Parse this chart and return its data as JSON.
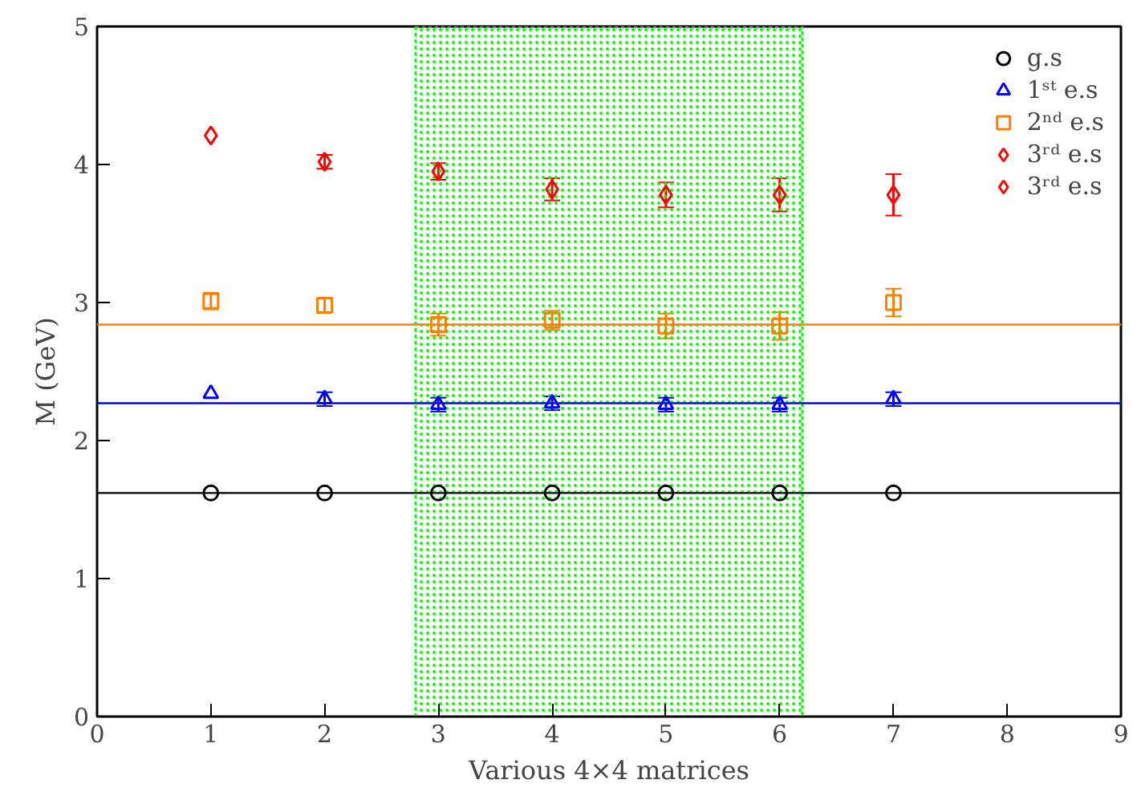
{
  "chart_data": {
    "type": "scatter",
    "xlabel": "Various 4×4 matrices",
    "ylabel": "M (GeV)",
    "x": [
      1,
      2,
      3,
      4,
      5,
      6,
      7
    ],
    "xlim": [
      0,
      9
    ],
    "ylim": [
      0,
      5
    ],
    "xticks": [
      0,
      1,
      2,
      3,
      4,
      5,
      6,
      7,
      8,
      9
    ],
    "yticks": [
      0,
      1,
      2,
      3,
      4,
      5
    ],
    "grid": false,
    "legend": "top right",
    "series": [
      {
        "name": "g.s",
        "color": "#000000",
        "marker": "circle",
        "values": [
          1.62,
          1.62,
          1.62,
          1.62,
          1.62,
          1.62,
          1.62
        ]
      },
      {
        "name": "1ˢᵗ e.s",
        "color": "#0000ff",
        "marker": "triangle",
        "values": [
          2.34,
          2.3,
          2.26,
          2.27,
          2.26,
          2.26,
          2.3
        ],
        "errors": [
          null,
          0.05,
          0.05,
          0.05,
          0.05,
          0.05,
          0.05
        ]
      },
      {
        "name": "2ⁿᵈ e.s",
        "color": "#ff8000",
        "marker": "square",
        "values": [
          3.01,
          2.98,
          2.84,
          2.87,
          2.83,
          2.83,
          3.0
        ],
        "errors": [
          0.06,
          0.05,
          0.08,
          0.07,
          0.09,
          0.1,
          0.1
        ]
      },
      {
        "name": "3ʳᵈ e.s",
        "color": "#ff0000",
        "marker": "diamond",
        "x": [
          1
        ],
        "values": [
          4.21
        ]
      },
      {
        "name": "3ʳᵈ e.s",
        "color": "#ff0000",
        "marker": "diamond",
        "x": [
          2,
          3,
          4,
          5,
          6,
          7
        ],
        "values": [
          4.02,
          3.95,
          3.82,
          3.78,
          3.78,
          3.78
        ],
        "errors": [
          0.05,
          0.06,
          0.08,
          0.09,
          0.12,
          0.15
        ]
      }
    ],
    "ref_lines": [
      {
        "axis": "y",
        "value": 1.62,
        "color": "#000000"
      },
      {
        "axis": "y",
        "value": 2.27,
        "color": "#0000ff"
      },
      {
        "axis": "y",
        "value": 2.84,
        "color": "#ff8000"
      }
    ],
    "bands": [
      {
        "axis": "x",
        "from": 2.8,
        "to": 6.2,
        "color": "#00ff00"
      }
    ]
  }
}
